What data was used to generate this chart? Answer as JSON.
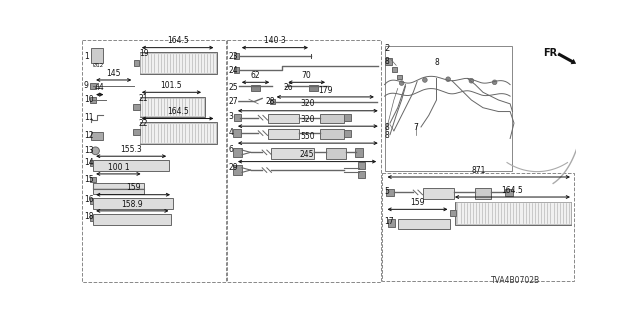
{
  "bg_color": "#ffffff",
  "title_code": "TVA4B0702B",
  "gray1": "#aaaaaa",
  "gray2": "#666666",
  "gray3": "#cccccc",
  "black": "#111111",
  "dgray": "#444444"
}
